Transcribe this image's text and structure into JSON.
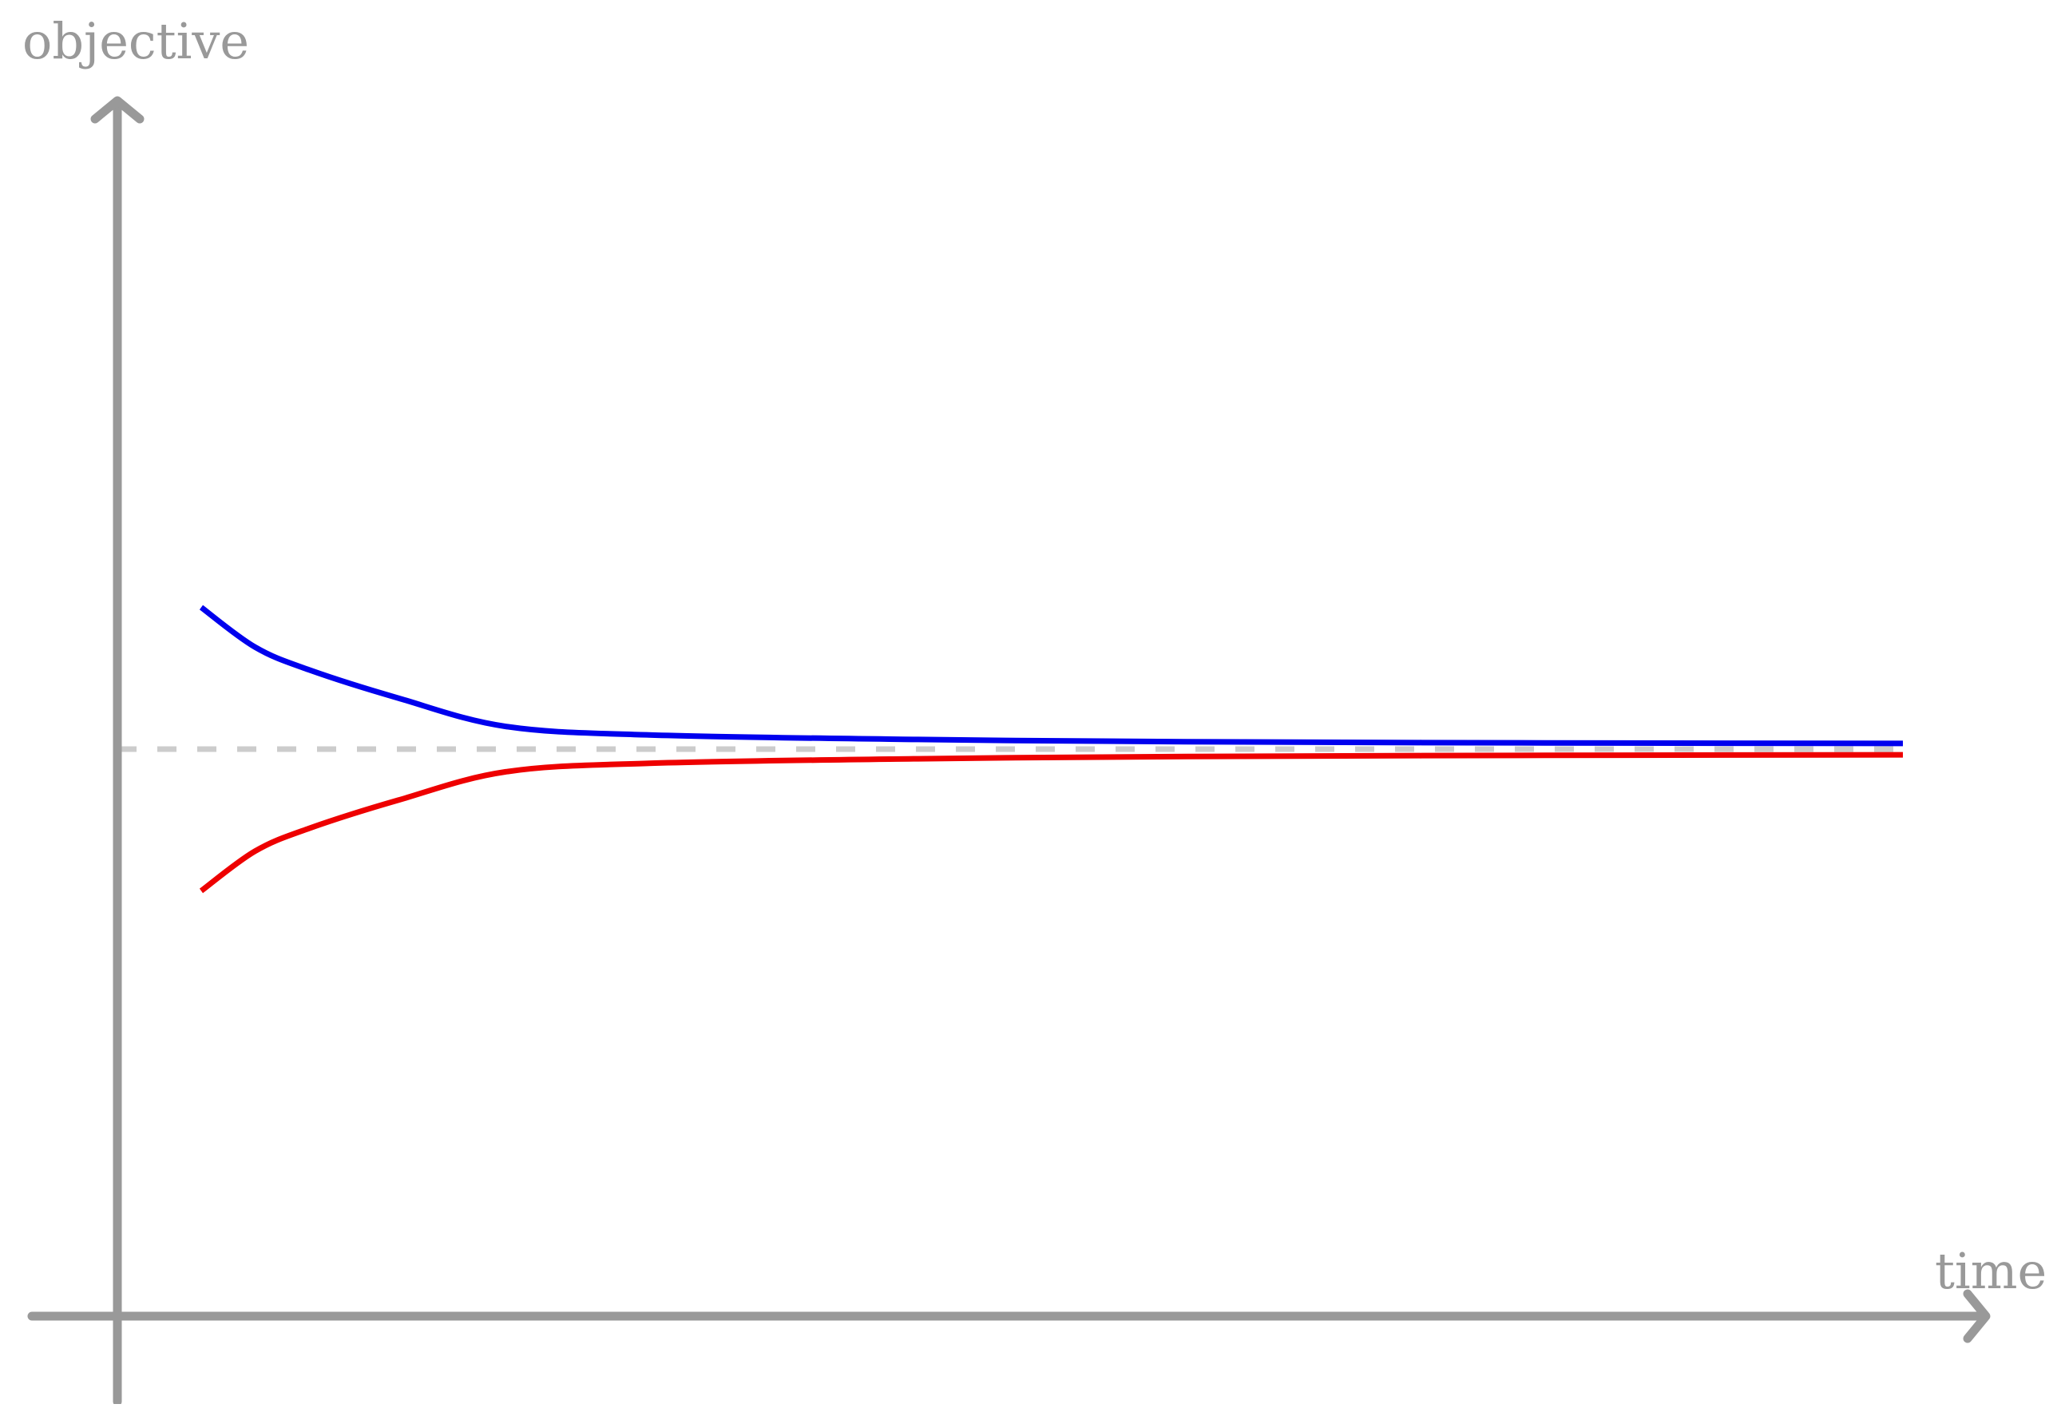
{
  "chart_data": {
    "type": "line",
    "xlabel": "time",
    "ylabel": "objective",
    "colors": {
      "axis": "#999999",
      "reference": "#cccccc",
      "upper": "#0000ee",
      "lower": "#ee0000"
    },
    "reference_line": {
      "y": 0,
      "style": "dashed"
    },
    "series": [
      {
        "color": "#0000ee",
        "points": [
          [
            0.05,
            0.25
          ],
          [
            0.08,
            0.18
          ],
          [
            0.11,
            0.14
          ],
          [
            0.16,
            0.09
          ],
          [
            0.22,
            0.04
          ],
          [
            0.3,
            0.025
          ],
          [
            0.45,
            0.017
          ],
          [
            0.6,
            0.013
          ],
          [
            0.8,
            0.011
          ],
          [
            1.0,
            0.01
          ]
        ]
      },
      {
        "color": "#ee0000",
        "points": [
          [
            0.05,
            -0.25
          ],
          [
            0.08,
            -0.18
          ],
          [
            0.11,
            -0.14
          ],
          [
            0.16,
            -0.09
          ],
          [
            0.22,
            -0.04
          ],
          [
            0.3,
            -0.025
          ],
          [
            0.45,
            -0.017
          ],
          [
            0.6,
            -0.013
          ],
          [
            0.8,
            -0.011
          ],
          [
            1.0,
            -0.01
          ]
        ]
      }
    ]
  }
}
